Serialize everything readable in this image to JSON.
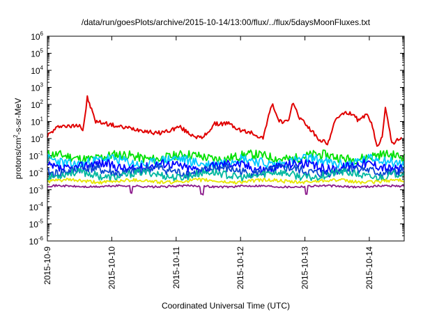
{
  "chart_data": {
    "type": "line",
    "title": "/data/run/goesPlots/archive/2015-10-14/13:00/flux/../flux/5daysMoonFluxes.txt",
    "xlabel": "Coordinated Universal Time (UTC)",
    "ylabel": {
      "pre": "protons/cm",
      "sup": "2",
      "post": "-s-sr-MeV"
    },
    "x_range": [
      "2015-10-09",
      "2015-10-14 13:00"
    ],
    "x_ticks": [
      "2015-10-9",
      "2015-10-10",
      "2015-10-11",
      "2015-10-12",
      "2015-10-13",
      "2015-10-14"
    ],
    "y_scale": "log",
    "ylim": [
      1e-06,
      1000000.0
    ],
    "y_ticks": [
      {
        "base": "10",
        "exp": "-6"
      },
      {
        "base": "10",
        "exp": "-5"
      },
      {
        "base": "10",
        "exp": "-4"
      },
      {
        "base": "10",
        "exp": "-3"
      },
      {
        "base": "10",
        "exp": "-2"
      },
      {
        "base": "10",
        "exp": "-1"
      },
      {
        "base": "10",
        "exp": "0"
      },
      {
        "base": "10",
        "exp": "1"
      },
      {
        "base": "10",
        "exp": "2"
      },
      {
        "base": "10",
        "exp": "3"
      },
      {
        "base": "10",
        "exp": "4"
      },
      {
        "base": "10",
        "exp": "5"
      },
      {
        "base": "10",
        "exp": "6"
      }
    ],
    "grid": false,
    "legend": "none",
    "series": [
      {
        "color": "#e00000",
        "x_days": [
          0,
          0.2,
          0.35,
          0.5,
          0.55,
          0.6,
          0.62,
          0.75,
          0.9,
          1.1,
          1.3,
          1.5,
          1.7,
          1.9,
          2.05,
          2.2,
          2.4,
          2.6,
          2.8,
          3.0,
          3.2,
          3.35,
          3.42,
          3.5,
          3.6,
          3.75,
          3.82,
          3.9,
          4.05,
          4.2,
          4.35,
          4.5,
          4.7,
          4.85,
          4.95,
          5.05,
          5.12,
          5.2,
          5.25,
          5.32,
          5.35,
          5.5
        ],
        "y": [
          1.5,
          6,
          5,
          7,
          3,
          60,
          250,
          10,
          8,
          5,
          4,
          3,
          2,
          3,
          5,
          2,
          1,
          7,
          8,
          3,
          2,
          1,
          15,
          100,
          10,
          10,
          150,
          20,
          5,
          1,
          0.5,
          20,
          35,
          10,
          30,
          5,
          0.3,
          1.5,
          80,
          2,
          0.5,
          1.2
        ]
      },
      {
        "color": "#00e000",
        "base": 0.085,
        "amp": 0.55,
        "wave": 0.4,
        "seed": 11
      },
      {
        "color": "#00c8ff",
        "base": 0.045,
        "amp": 0.6,
        "wave": 0.5,
        "seed": 23
      },
      {
        "color": "#0000ff",
        "base": 0.024,
        "amp": 0.55,
        "wave": 0.5,
        "seed": 37
      },
      {
        "color": "#0a46d0",
        "base": 0.013,
        "amp": 0.55,
        "wave": 0.45,
        "seed": 41
      },
      {
        "color": "#00b8a0",
        "base": 0.0075,
        "amp": 0.45,
        "wave": 0.45,
        "seed": 53
      },
      {
        "color": "#e6e600",
        "base": 0.0032,
        "amp": 0.2,
        "wave": 0.2,
        "seed": 61
      },
      {
        "color": "#8b1a8b",
        "base": 0.0016,
        "amp": 0.12,
        "wave": 0.1,
        "seed": 71
      }
    ]
  }
}
